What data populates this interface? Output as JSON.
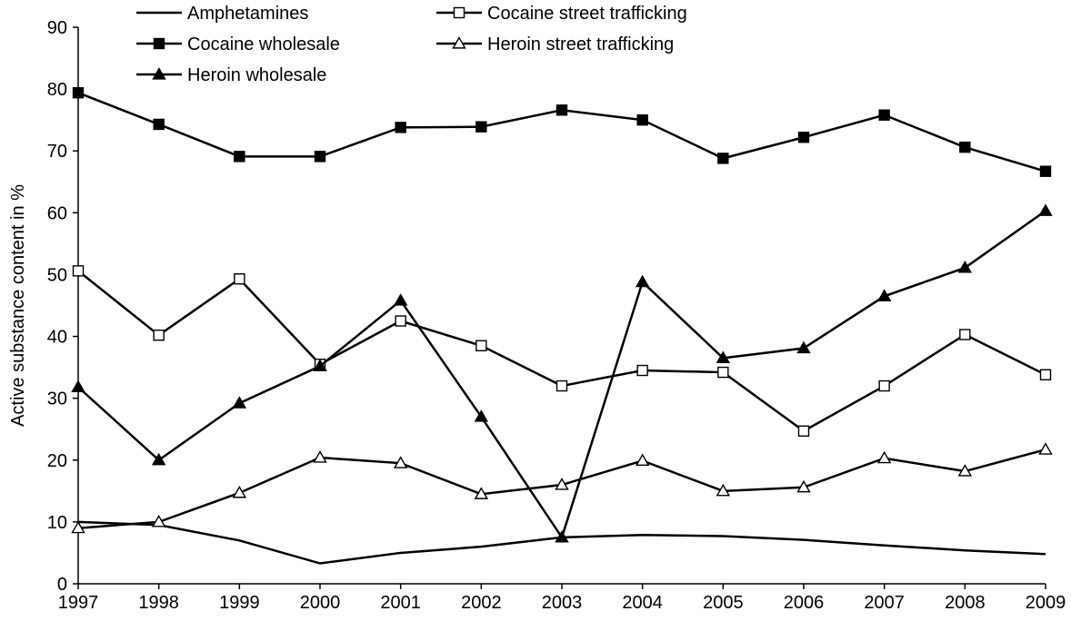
{
  "chart_data": {
    "type": "line",
    "title": "",
    "xlabel": "",
    "ylabel": "Active substance content in %",
    "ylim": [
      0,
      90
    ],
    "yticks": [
      0,
      10,
      20,
      30,
      40,
      50,
      60,
      70,
      80,
      90
    ],
    "categories": [
      "1997",
      "1998",
      "1999",
      "2000",
      "2001",
      "2002",
      "2003",
      "2004",
      "2005",
      "2006",
      "2007",
      "2008",
      "2009"
    ],
    "grid": false,
    "legend_position": "top-left",
    "series": [
      {
        "name": "Amphetamines",
        "marker": "none",
        "color": "#000000",
        "values": [
          10.0,
          9.5,
          7.0,
          3.3,
          5.0,
          6.0,
          7.5,
          7.9,
          7.7,
          7.1,
          6.2,
          5.4,
          4.8
        ]
      },
      {
        "name": "Cocaine street trafficking",
        "marker": "square-open",
        "color": "#000000",
        "values": [
          50.6,
          40.2,
          49.3,
          35.5,
          42.5,
          38.5,
          32.0,
          34.5,
          34.2,
          24.7,
          32.0,
          40.3,
          33.8
        ]
      },
      {
        "name": "Cocaine wholesale",
        "marker": "square-filled",
        "color": "#000000",
        "values": [
          79.4,
          74.3,
          69.1,
          69.1,
          73.8,
          73.9,
          76.6,
          75.0,
          68.8,
          72.2,
          75.8,
          70.6,
          66.7
        ]
      },
      {
        "name": "Heroin street trafficking",
        "marker": "triangle-open",
        "color": "#000000",
        "values": [
          9.0,
          10.0,
          14.7,
          20.4,
          19.5,
          14.5,
          16.0,
          19.9,
          15.0,
          15.6,
          20.3,
          18.2,
          21.7
        ]
      },
      {
        "name": "Heroin wholesale",
        "marker": "triangle-filled",
        "color": "#000000",
        "values": [
          31.8,
          20.0,
          29.2,
          35.2,
          45.8,
          27.0,
          7.5,
          48.8,
          36.5,
          38.1,
          46.5,
          51.1,
          60.3
        ]
      }
    ]
  }
}
